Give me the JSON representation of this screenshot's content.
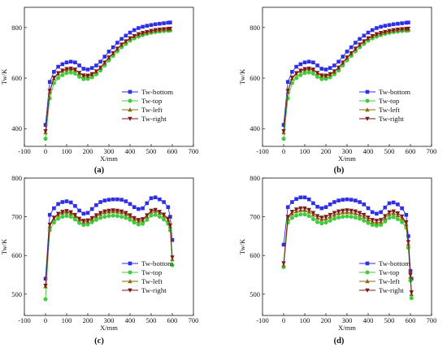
{
  "chart_data": [
    {
      "panel": "(a)",
      "type": "line",
      "xlabel": "X/mm",
      "ylabel": "Tw/K",
      "xlim": [
        -100,
        700
      ],
      "ylim": [
        330,
        880
      ],
      "xticks": [
        "-100",
        "0",
        "100",
        "200",
        "300",
        "400",
        "500",
        "600",
        "700"
      ],
      "yticks": [
        "400",
        "600",
        "800"
      ],
      "ytick_values": [
        400,
        600,
        800
      ],
      "legend": "right-middle",
      "x": [
        0,
        20,
        40,
        60,
        80,
        100,
        120,
        140,
        160,
        180,
        200,
        220,
        240,
        260,
        280,
        300,
        320,
        340,
        360,
        380,
        400,
        420,
        440,
        460,
        480,
        500,
        520,
        540,
        560,
        580,
        590
      ],
      "series": [
        {
          "name": "Tw-bottom",
          "color": "#2e2ee6",
          "marker": "square",
          "values": [
            415,
            585,
            625,
            645,
            655,
            662,
            665,
            662,
            650,
            637,
            634,
            640,
            650,
            665,
            685,
            705,
            722,
            740,
            755,
            768,
            780,
            790,
            798,
            803,
            807,
            810,
            813,
            815,
            817,
            819,
            820
          ]
        },
        {
          "name": "Tw-top",
          "color": "#3ccc3c",
          "marker": "circle",
          "values": [
            360,
            520,
            580,
            600,
            612,
            620,
            622,
            618,
            605,
            596,
            597,
            603,
            615,
            630,
            650,
            670,
            688,
            706,
            722,
            735,
            748,
            757,
            764,
            770,
            775,
            779,
            782,
            784,
            786,
            787,
            788
          ]
        },
        {
          "name": "Tw-left",
          "color": "#8a6a10",
          "marker": "triangle-up",
          "values": [
            385,
            545,
            598,
            617,
            628,
            634,
            636,
            632,
            619,
            609,
            608,
            614,
            625,
            640,
            660,
            680,
            697,
            715,
            731,
            744,
            756,
            765,
            772,
            777,
            781,
            785,
            788,
            790,
            792,
            793,
            794
          ]
        },
        {
          "name": "Tw-right",
          "color": "#7a1a1a",
          "marker": "triangle-down",
          "values": [
            390,
            550,
            602,
            620,
            630,
            636,
            638,
            634,
            621,
            611,
            610,
            616,
            627,
            642,
            662,
            682,
            699,
            717,
            733,
            746,
            758,
            767,
            774,
            779,
            783,
            787,
            790,
            792,
            794,
            795,
            796
          ]
        }
      ]
    },
    {
      "panel": "(b)",
      "type": "line",
      "xlabel": "X/mm",
      "ylabel": "Tw/K",
      "xlim": [
        -100,
        700
      ],
      "ylim": [
        330,
        880
      ],
      "xticks": [
        "-100",
        "0",
        "100",
        "200",
        "300",
        "400",
        "500",
        "600",
        "700"
      ],
      "yticks": [
        "400",
        "600",
        "800"
      ],
      "ytick_values": [
        400,
        600,
        800
      ],
      "legend": "right-middle",
      "x": [
        0,
        20,
        40,
        60,
        80,
        100,
        120,
        140,
        160,
        180,
        200,
        220,
        240,
        260,
        280,
        300,
        320,
        340,
        360,
        380,
        400,
        420,
        440,
        460,
        480,
        500,
        520,
        540,
        560,
        580,
        590
      ],
      "series": [
        {
          "name": "Tw-bottom",
          "color": "#2e2ee6",
          "marker": "square",
          "values": [
            415,
            585,
            625,
            645,
            655,
            662,
            665,
            662,
            650,
            637,
            634,
            640,
            650,
            665,
            685,
            705,
            722,
            740,
            755,
            768,
            780,
            790,
            798,
            803,
            807,
            810,
            813,
            815,
            817,
            819,
            820
          ]
        },
        {
          "name": "Tw-top",
          "color": "#3ccc3c",
          "marker": "circle",
          "values": [
            360,
            520,
            580,
            600,
            612,
            620,
            622,
            618,
            605,
            596,
            597,
            603,
            615,
            630,
            650,
            670,
            688,
            706,
            722,
            735,
            748,
            757,
            764,
            770,
            775,
            779,
            782,
            784,
            786,
            787,
            788
          ]
        },
        {
          "name": "Tw-left",
          "color": "#8a6a10",
          "marker": "triangle-up",
          "values": [
            385,
            545,
            598,
            617,
            628,
            634,
            636,
            632,
            619,
            609,
            608,
            614,
            625,
            640,
            660,
            680,
            697,
            715,
            731,
            744,
            756,
            765,
            772,
            777,
            781,
            785,
            788,
            790,
            792,
            793,
            794
          ]
        },
        {
          "name": "Tw-right",
          "color": "#7a1a1a",
          "marker": "triangle-down",
          "values": [
            390,
            550,
            602,
            620,
            630,
            636,
            638,
            634,
            621,
            611,
            610,
            616,
            627,
            642,
            662,
            682,
            699,
            717,
            733,
            746,
            758,
            767,
            774,
            779,
            783,
            787,
            790,
            792,
            794,
            795,
            796
          ]
        }
      ]
    },
    {
      "panel": "(c)",
      "type": "line",
      "xlabel": "X/mm",
      "ylabel": "Tw/K",
      "xlim": [
        -100,
        700
      ],
      "ylim": [
        445,
        800
      ],
      "xticks": [
        "-100",
        "0",
        "100",
        "200",
        "300",
        "400",
        "500",
        "600",
        "700"
      ],
      "yticks": [
        "500",
        "600",
        "700",
        "800"
      ],
      "ytick_values": [
        500,
        600,
        700,
        800
      ],
      "legend": "right-lower",
      "x": [
        0,
        20,
        40,
        60,
        80,
        100,
        120,
        140,
        160,
        180,
        200,
        220,
        240,
        260,
        280,
        300,
        320,
        340,
        360,
        380,
        400,
        420,
        440,
        460,
        480,
        500,
        520,
        540,
        560,
        580,
        590,
        600
      ],
      "series": [
        {
          "name": "Tw-bottom",
          "color": "#2e2ee6",
          "marker": "square",
          "values": [
            540,
            705,
            722,
            733,
            738,
            740,
            737,
            728,
            716,
            708,
            710,
            720,
            730,
            738,
            742,
            744,
            745,
            745,
            744,
            740,
            733,
            725,
            720,
            722,
            735,
            748,
            750,
            745,
            738,
            725,
            700,
            640
          ]
        },
        {
          "name": "Tw-top",
          "color": "#3ccc3c",
          "marker": "circle",
          "values": [
            487,
            665,
            685,
            695,
            700,
            702,
            700,
            693,
            684,
            679,
            680,
            686,
            692,
            697,
            700,
            702,
            703,
            702,
            700,
            697,
            692,
            685,
            680,
            682,
            692,
            703,
            705,
            700,
            693,
            682,
            665,
            575
          ]
        },
        {
          "name": "Tw-left",
          "color": "#8a6a10",
          "marker": "triangle-up",
          "values": [
            520,
            675,
            695,
            705,
            710,
            712,
            709,
            702,
            693,
            687,
            688,
            694,
            701,
            707,
            711,
            713,
            714,
            713,
            711,
            707,
            701,
            694,
            689,
            691,
            701,
            713,
            715,
            710,
            703,
            692,
            675,
            590
          ]
        },
        {
          "name": "Tw-right",
          "color": "#7a1a1a",
          "marker": "triangle-down",
          "values": [
            522,
            680,
            698,
            708,
            713,
            715,
            712,
            705,
            695,
            690,
            691,
            697,
            704,
            710,
            714,
            716,
            717,
            716,
            714,
            710,
            704,
            697,
            692,
            694,
            704,
            716,
            718,
            713,
            706,
            695,
            678,
            595
          ]
        }
      ]
    },
    {
      "panel": "(d)",
      "type": "line",
      "xlabel": "X/mm",
      "ylabel": "Tw/K",
      "xlim": [
        -100,
        700
      ],
      "ylim": [
        445,
        800
      ],
      "xticks": [
        "-100",
        "0",
        "100",
        "200",
        "300",
        "400",
        "500",
        "600",
        "700"
      ],
      "yticks": [
        "500",
        "600",
        "700",
        "800"
      ],
      "ytick_values": [
        500,
        600,
        700,
        800
      ],
      "legend": "right-lower",
      "x": [
        0,
        20,
        40,
        60,
        80,
        100,
        120,
        140,
        160,
        180,
        200,
        220,
        240,
        260,
        280,
        300,
        320,
        340,
        360,
        380,
        400,
        420,
        440,
        460,
        480,
        500,
        520,
        540,
        560,
        580,
        590,
        600,
        605
      ],
      "series": [
        {
          "name": "Tw-bottom",
          "color": "#2e2ee6",
          "marker": "square",
          "values": [
            628,
            725,
            738,
            746,
            750,
            750,
            745,
            735,
            726,
            722,
            725,
            732,
            738,
            742,
            744,
            745,
            744,
            742,
            738,
            732,
            722,
            712,
            708,
            712,
            724,
            735,
            737,
            732,
            722,
            705,
            650,
            560,
            540
          ]
        },
        {
          "name": "Tw-top",
          "color": "#3ccc3c",
          "marker": "circle",
          "values": [
            570,
            685,
            697,
            703,
            706,
            706,
            702,
            694,
            686,
            683,
            685,
            690,
            695,
            698,
            700,
            701,
            700,
            698,
            695,
            690,
            684,
            679,
            677,
            679,
            688,
            697,
            699,
            694,
            686,
            672,
            620,
            535,
            490
          ]
        },
        {
          "name": "Tw-left",
          "color": "#8a6a10",
          "marker": "triangle-up",
          "values": [
            575,
            695,
            708,
            714,
            717,
            717,
            713,
            705,
            697,
            693,
            695,
            700,
            705,
            709,
            711,
            712,
            711,
            709,
            705,
            700,
            693,
            687,
            685,
            687,
            697,
            707,
            709,
            704,
            696,
            681,
            630,
            545,
            500
          ]
        },
        {
          "name": "Tw-right",
          "color": "#7a1a1a",
          "marker": "triangle-down",
          "values": [
            580,
            700,
            713,
            719,
            722,
            722,
            718,
            710,
            702,
            698,
            700,
            705,
            710,
            714,
            716,
            717,
            716,
            714,
            710,
            705,
            698,
            692,
            690,
            692,
            702,
            712,
            714,
            709,
            701,
            686,
            635,
            550,
            505
          ]
        }
      ]
    }
  ]
}
